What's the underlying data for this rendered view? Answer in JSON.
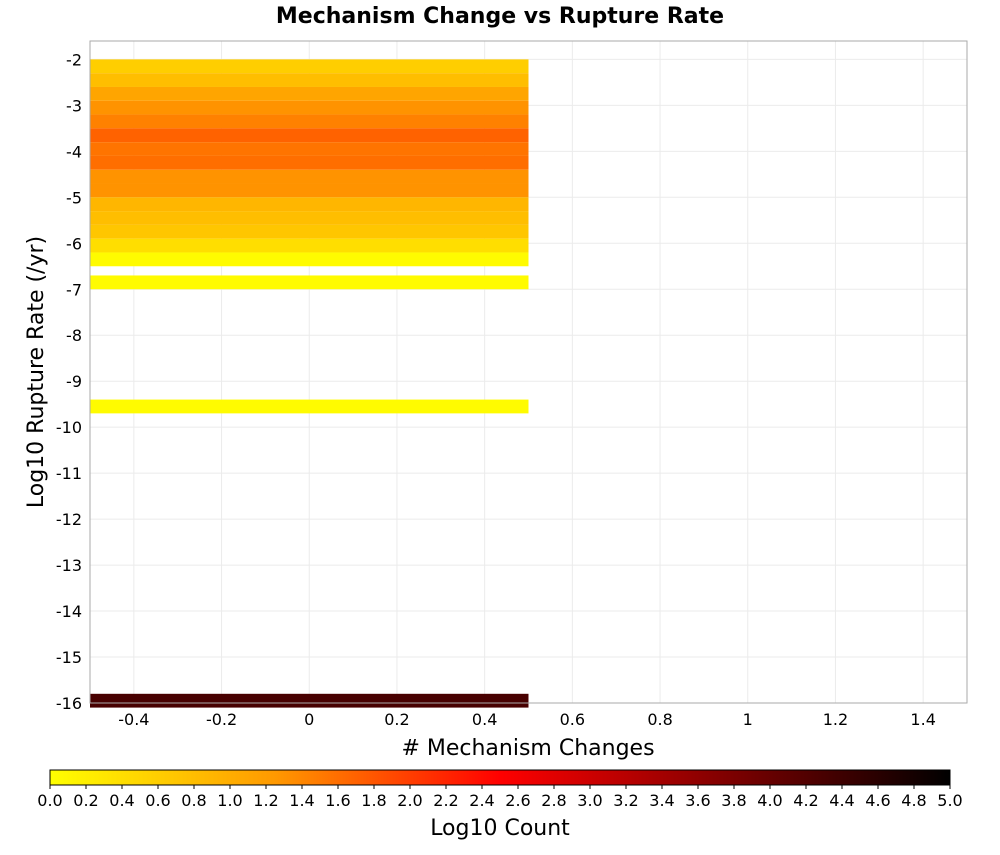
{
  "chart_data": {
    "type": "heatmap",
    "title": "Mechanism Change vs Rupture Rate",
    "xlabel": "# Mechanism Changes",
    "ylabel": "Log10 Rupture Rate (/yr)",
    "xlim": [
      -0.5,
      1.5
    ],
    "ylim": [
      -16,
      -1.6
    ],
    "x_ticks": [
      "-0.4",
      "-0.2",
      "0",
      "0.2",
      "0.4",
      "0.6",
      "0.8",
      "1",
      "1.2",
      "1.4"
    ],
    "y_ticks": [
      "-2",
      "-3",
      "-4",
      "-5",
      "-6",
      "-7",
      "-8",
      "-9",
      "-10",
      "-11",
      "-12",
      "-13",
      "-14",
      "-15",
      "-16"
    ],
    "grid": true,
    "colorbar": {
      "label": "Log10 Count",
      "range": [
        0,
        5
      ],
      "ticks": [
        "0.0",
        "0.2",
        "0.4",
        "0.6",
        "0.8",
        "1.0",
        "1.2",
        "1.4",
        "1.6",
        "1.8",
        "2.0",
        "2.2",
        "2.4",
        "2.6",
        "2.8",
        "3.0",
        "3.2",
        "3.4",
        "3.6",
        "3.8",
        "4.0",
        "4.2",
        "4.4",
        "4.6",
        "4.8",
        "5.0"
      ],
      "colors": [
        "#ffff00",
        "#ff9900",
        "#ff0000",
        "#800000",
        "#000000"
      ]
    },
    "cell_width": 1,
    "cell_height": 0.3,
    "cells": [
      {
        "x": 0,
        "y": -2.15,
        "log10_count": 0.6
      },
      {
        "x": 0,
        "y": -2.45,
        "log10_count": 0.8
      },
      {
        "x": 0,
        "y": -2.75,
        "log10_count": 1.1
      },
      {
        "x": 0,
        "y": -3.05,
        "log10_count": 1.3
      },
      {
        "x": 0,
        "y": -3.35,
        "log10_count": 1.45
      },
      {
        "x": 0,
        "y": -3.65,
        "log10_count": 1.7
      },
      {
        "x": 0,
        "y": -3.95,
        "log10_count": 1.55
      },
      {
        "x": 0,
        "y": -4.25,
        "log10_count": 1.6
      },
      {
        "x": 0,
        "y": -4.55,
        "log10_count": 1.3
      },
      {
        "x": 0,
        "y": -4.85,
        "log10_count": 1.3
      },
      {
        "x": 0,
        "y": -5.15,
        "log10_count": 0.9
      },
      {
        "x": 0,
        "y": -5.45,
        "log10_count": 0.8
      },
      {
        "x": 0,
        "y": -5.75,
        "log10_count": 0.7
      },
      {
        "x": 0,
        "y": -6.05,
        "log10_count": 0.4
      },
      {
        "x": 0,
        "y": -6.35,
        "log10_count": 0.05
      },
      {
        "x": 0,
        "y": -6.85,
        "log10_count": 0.05
      },
      {
        "x": 0,
        "y": -9.55,
        "log10_count": 0.05
      },
      {
        "x": 0,
        "y": -15.95,
        "log10_count": 4.3
      }
    ]
  }
}
